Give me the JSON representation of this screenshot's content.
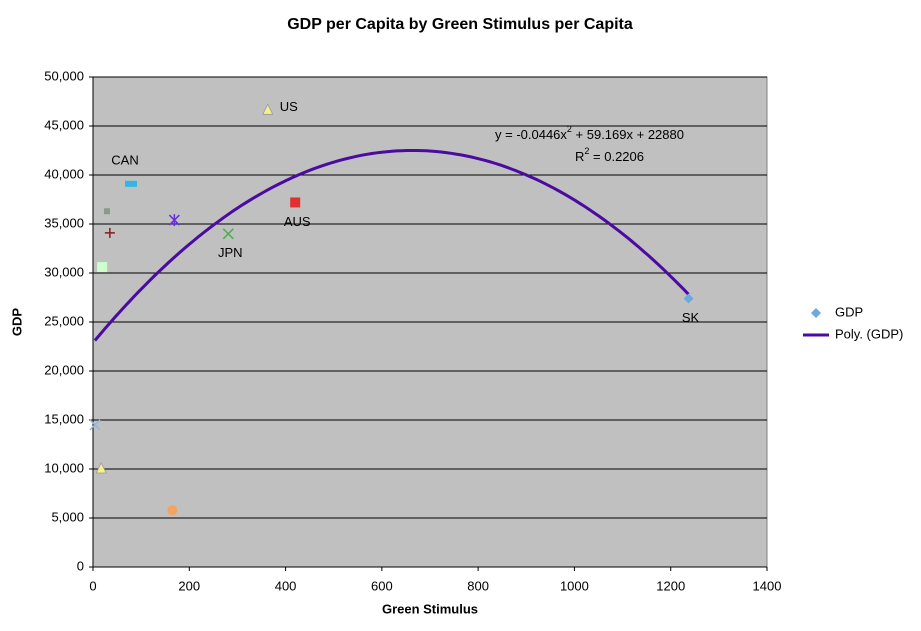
{
  "chart_data": {
    "type": "scatter",
    "title": "GDP per Capita by Green Stimulus per Capita",
    "x_label": "Green Stimulus",
    "y_label": "GDP",
    "xlim": [
      0,
      1400
    ],
    "xticks": [
      0,
      200,
      400,
      600,
      800,
      1000,
      1200,
      1400
    ],
    "ylim": [
      0,
      50000
    ],
    "yticks": [
      0,
      {
        "value": 5000,
        "label": "5,000"
      },
      {
        "value": 10000,
        "label": "10,000"
      },
      {
        "value": 15000,
        "label": "15,000"
      },
      {
        "value": 20000,
        "label": "20,000"
      },
      {
        "value": 25000,
        "label": "25,000"
      },
      {
        "value": 30000,
        "label": "30,000"
      },
      {
        "value": 35000,
        "label": "35,000"
      },
      {
        "value": 40000,
        "label": "40,000"
      },
      {
        "value": 45000,
        "label": "45,000"
      },
      {
        "value": 50000,
        "label": "50,000"
      }
    ],
    "grid": true,
    "plot_background": "#c0c0c0",
    "legend": "right",
    "series": [
      {
        "name": "GDP",
        "color": "#6fa8dc",
        "x": [
          363,
          79,
          29,
          35,
          169,
          281,
          420,
          19,
          1237,
          4,
          17,
          165
        ],
        "values": [
          46600,
          39100,
          36300,
          34100,
          35400,
          34000,
          37200,
          30600,
          27400,
          14500,
          10000,
          5800
        ],
        "point_labels": [
          "US",
          "CAN",
          null,
          null,
          null,
          "JPN",
          "AUS",
          null,
          "SK",
          null,
          null,
          null
        ],
        "label_positions": [
          "right",
          "above-left",
          null,
          null,
          null,
          "below",
          "below",
          null,
          "below",
          null,
          null,
          null
        ],
        "point_shapes": [
          "triangle",
          "rect",
          "small-square",
          "plus",
          "asterisk",
          "cross",
          "square",
          "square",
          "diamond",
          "cross",
          "triangle",
          "circle"
        ],
        "point_colors": [
          "#f7f08a",
          "#33b5e5",
          "#8a9a8a",
          "#8b1a1a",
          "#6a2ee0",
          "#4caf50",
          "#e03030",
          "#ccffcc",
          "#6fa8dc",
          "#8fb8e0",
          "#f7f08a",
          "#f4a460"
        ]
      }
    ],
    "trendline": {
      "name": "Poly. (GDP)",
      "color": "#4b0aa0",
      "coefficients": [
        22880,
        59.169,
        -0.0446
      ],
      "equation": [
        "y = -0.0446x",
        "2",
        " + 59.169x + 22880"
      ],
      "r_squared": [
        "R",
        "2",
        " = 0.2206"
      ]
    }
  }
}
